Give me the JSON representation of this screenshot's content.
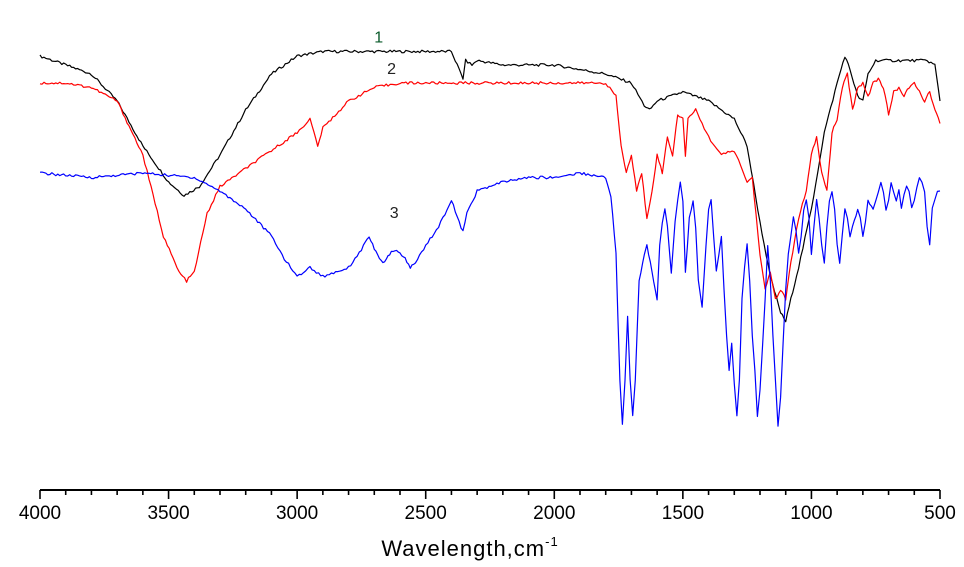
{
  "chart_data": {
    "type": "line",
    "xlabel": "Wavelength,cm",
    "xlabel_superscript": "-1",
    "xlim": [
      4000,
      500
    ],
    "x_reversed": true,
    "x_ticks": [
      4000,
      3500,
      3000,
      2500,
      2000,
      1500,
      1000,
      500
    ],
    "x_tick_labels": [
      "4000",
      "3500",
      "3000",
      "2500",
      "2000",
      "1500",
      "1000",
      "500"
    ],
    "ylim": [
      0,
      100
    ],
    "y_axis_visible": false,
    "grid": false,
    "legend": "none",
    "series": [
      {
        "name": "1",
        "color": "#000000",
        "label_at": [
          2700,
          95
        ],
        "points": [
          [
            4000,
            92
          ],
          [
            3900,
            90
          ],
          [
            3800,
            88
          ],
          [
            3700,
            82
          ],
          [
            3600,
            72
          ],
          [
            3500,
            64
          ],
          [
            3440,
            61
          ],
          [
            3380,
            63
          ],
          [
            3300,
            70
          ],
          [
            3200,
            80
          ],
          [
            3100,
            88
          ],
          [
            3000,
            92
          ],
          [
            2900,
            93
          ],
          [
            2700,
            93
          ],
          [
            2500,
            93
          ],
          [
            2400,
            93
          ],
          [
            2370,
            89
          ],
          [
            2355,
            87
          ],
          [
            2345,
            91
          ],
          [
            2320,
            90
          ],
          [
            2300,
            91
          ],
          [
            2200,
            90
          ],
          [
            2000,
            90
          ],
          [
            1800,
            88
          ],
          [
            1700,
            86
          ],
          [
            1650,
            81
          ],
          [
            1630,
            80
          ],
          [
            1600,
            82
          ],
          [
            1500,
            84
          ],
          [
            1400,
            82
          ],
          [
            1300,
            78
          ],
          [
            1250,
            72
          ],
          [
            1200,
            55
          ],
          [
            1160,
            43
          ],
          [
            1120,
            35
          ],
          [
            1100,
            33
          ],
          [
            1080,
            38
          ],
          [
            1050,
            45
          ],
          [
            1000,
            58
          ],
          [
            950,
            75
          ],
          [
            900,
            86
          ],
          [
            870,
            92
          ],
          [
            850,
            89
          ],
          [
            820,
            83
          ],
          [
            800,
            82
          ],
          [
            780,
            88
          ],
          [
            750,
            91
          ],
          [
            700,
            91
          ],
          [
            600,
            91
          ],
          [
            550,
            91
          ],
          [
            520,
            90
          ],
          [
            500,
            82
          ]
        ]
      },
      {
        "name": "2",
        "color": "#ff0000",
        "label_at": [
          2650,
          88
        ],
        "points": [
          [
            4000,
            86
          ],
          [
            3900,
            86
          ],
          [
            3800,
            85
          ],
          [
            3700,
            82
          ],
          [
            3600,
            70
          ],
          [
            3520,
            52
          ],
          [
            3460,
            44
          ],
          [
            3430,
            42
          ],
          [
            3400,
            44
          ],
          [
            3350,
            57
          ],
          [
            3300,
            63
          ],
          [
            3200,
            67
          ],
          [
            3100,
            71
          ],
          [
            3000,
            75
          ],
          [
            2950,
            78
          ],
          [
            2920,
            72
          ],
          [
            2900,
            76
          ],
          [
            2800,
            82
          ],
          [
            2700,
            85
          ],
          [
            2600,
            86
          ],
          [
            2500,
            86
          ],
          [
            2400,
            86
          ],
          [
            2300,
            86
          ],
          [
            2200,
            86
          ],
          [
            2000,
            86
          ],
          [
            1800,
            86
          ],
          [
            1760,
            83
          ],
          [
            1740,
            72
          ],
          [
            1720,
            66
          ],
          [
            1700,
            70
          ],
          [
            1680,
            62
          ],
          [
            1660,
            66
          ],
          [
            1640,
            56
          ],
          [
            1620,
            62
          ],
          [
            1600,
            70
          ],
          [
            1580,
            66
          ],
          [
            1560,
            74
          ],
          [
            1540,
            70
          ],
          [
            1520,
            79
          ],
          [
            1500,
            78
          ],
          [
            1490,
            70
          ],
          [
            1480,
            78
          ],
          [
            1450,
            80
          ],
          [
            1400,
            74
          ],
          [
            1350,
            70
          ],
          [
            1300,
            71
          ],
          [
            1250,
            64
          ],
          [
            1230,
            65
          ],
          [
            1200,
            48
          ],
          [
            1180,
            40
          ],
          [
            1160,
            44
          ],
          [
            1140,
            38
          ],
          [
            1120,
            40
          ],
          [
            1100,
            38
          ],
          [
            1080,
            46
          ],
          [
            1050,
            56
          ],
          [
            1020,
            62
          ],
          [
            1000,
            70
          ],
          [
            980,
            74
          ],
          [
            960,
            66
          ],
          [
            940,
            62
          ],
          [
            920,
            75
          ],
          [
            900,
            78
          ],
          [
            880,
            85
          ],
          [
            860,
            88
          ],
          [
            840,
            80
          ],
          [
            820,
            85
          ],
          [
            800,
            86
          ],
          [
            780,
            83
          ],
          [
            760,
            86
          ],
          [
            740,
            87
          ],
          [
            720,
            85
          ],
          [
            700,
            79
          ],
          [
            680,
            84
          ],
          [
            660,
            85
          ],
          [
            640,
            83
          ],
          [
            620,
            85
          ],
          [
            600,
            86
          ],
          [
            580,
            84
          ],
          [
            560,
            82
          ],
          [
            540,
            84
          ],
          [
            520,
            80
          ],
          [
            500,
            77
          ]
        ]
      },
      {
        "name": "3",
        "color": "#0000ff",
        "label_at": [
          2640,
          56
        ],
        "points": [
          [
            4000,
            66
          ],
          [
            3800,
            65
          ],
          [
            3600,
            66
          ],
          [
            3400,
            65
          ],
          [
            3300,
            62
          ],
          [
            3200,
            58
          ],
          [
            3100,
            52
          ],
          [
            3050,
            47
          ],
          [
            3000,
            43
          ],
          [
            2950,
            45
          ],
          [
            2900,
            43
          ],
          [
            2850,
            44
          ],
          [
            2800,
            45
          ],
          [
            2750,
            49
          ],
          [
            2720,
            52
          ],
          [
            2700,
            49
          ],
          [
            2680,
            47
          ],
          [
            2660,
            46
          ],
          [
            2640,
            48
          ],
          [
            2620,
            49
          ],
          [
            2600,
            48
          ],
          [
            2580,
            47
          ],
          [
            2560,
            45
          ],
          [
            2540,
            46
          ],
          [
            2500,
            50
          ],
          [
            2450,
            54
          ],
          [
            2400,
            60
          ],
          [
            2370,
            55
          ],
          [
            2355,
            53
          ],
          [
            2340,
            57
          ],
          [
            2300,
            62
          ],
          [
            2200,
            64
          ],
          [
            2100,
            65
          ],
          [
            2000,
            65
          ],
          [
            1900,
            66
          ],
          [
            1800,
            65
          ],
          [
            1780,
            61
          ],
          [
            1760,
            48
          ],
          [
            1745,
            20
          ],
          [
            1735,
            10
          ],
          [
            1725,
            20
          ],
          [
            1715,
            34
          ],
          [
            1705,
            20
          ],
          [
            1695,
            12
          ],
          [
            1685,
            20
          ],
          [
            1670,
            42
          ],
          [
            1650,
            48
          ],
          [
            1640,
            50
          ],
          [
            1620,
            44
          ],
          [
            1600,
            38
          ],
          [
            1590,
            50
          ],
          [
            1580,
            55
          ],
          [
            1570,
            58
          ],
          [
            1560,
            54
          ],
          [
            1545,
            44
          ],
          [
            1530,
            55
          ],
          [
            1520,
            60
          ],
          [
            1510,
            64
          ],
          [
            1500,
            60
          ],
          [
            1490,
            44
          ],
          [
            1475,
            56
          ],
          [
            1460,
            60
          ],
          [
            1450,
            54
          ],
          [
            1440,
            42
          ],
          [
            1425,
            36
          ],
          [
            1410,
            50
          ],
          [
            1400,
            58
          ],
          [
            1390,
            60
          ],
          [
            1380,
            52
          ],
          [
            1370,
            44
          ],
          [
            1360,
            48
          ],
          [
            1350,
            52
          ],
          [
            1340,
            40
          ],
          [
            1330,
            30
          ],
          [
            1320,
            22
          ],
          [
            1310,
            28
          ],
          [
            1300,
            19
          ],
          [
            1290,
            12
          ],
          [
            1280,
            20
          ],
          [
            1270,
            38
          ],
          [
            1260,
            45
          ],
          [
            1250,
            50
          ],
          [
            1240,
            42
          ],
          [
            1230,
            30
          ],
          [
            1220,
            22
          ],
          [
            1210,
            12
          ],
          [
            1200,
            18
          ],
          [
            1190,
            28
          ],
          [
            1180,
            38
          ],
          [
            1170,
            50
          ],
          [
            1160,
            42
          ],
          [
            1150,
            30
          ],
          [
            1140,
            20
          ],
          [
            1130,
            10
          ],
          [
            1120,
            16
          ],
          [
            1110,
            28
          ],
          [
            1100,
            40
          ],
          [
            1090,
            48
          ],
          [
            1080,
            52
          ],
          [
            1070,
            56
          ],
          [
            1060,
            53
          ],
          [
            1050,
            48
          ],
          [
            1040,
            52
          ],
          [
            1030,
            58
          ],
          [
            1020,
            60
          ],
          [
            1010,
            56
          ],
          [
            1000,
            48
          ],
          [
            990,
            54
          ],
          [
            980,
            60
          ],
          [
            970,
            56
          ],
          [
            960,
            50
          ],
          [
            950,
            46
          ],
          [
            940,
            54
          ],
          [
            930,
            60
          ],
          [
            920,
            62
          ],
          [
            910,
            58
          ],
          [
            900,
            50
          ],
          [
            890,
            46
          ],
          [
            880,
            52
          ],
          [
            870,
            58
          ],
          [
            860,
            56
          ],
          [
            850,
            52
          ],
          [
            840,
            54
          ],
          [
            820,
            58
          ],
          [
            810,
            56
          ],
          [
            800,
            52
          ],
          [
            790,
            55
          ],
          [
            780,
            60
          ],
          [
            760,
            58
          ],
          [
            750,
            60
          ],
          [
            740,
            62
          ],
          [
            730,
            64
          ],
          [
            720,
            62
          ],
          [
            710,
            58
          ],
          [
            700,
            60
          ],
          [
            690,
            64
          ],
          [
            680,
            62
          ],
          [
            670,
            60
          ],
          [
            660,
            62
          ],
          [
            650,
            58
          ],
          [
            640,
            61
          ],
          [
            630,
            63
          ],
          [
            620,
            62
          ],
          [
            610,
            58
          ],
          [
            600,
            60
          ],
          [
            590,
            63
          ],
          [
            580,
            65
          ],
          [
            570,
            64
          ],
          [
            560,
            62
          ],
          [
            550,
            54
          ],
          [
            540,
            50
          ],
          [
            530,
            58
          ],
          [
            520,
            60
          ],
          [
            510,
            62
          ],
          [
            500,
            62
          ]
        ]
      }
    ]
  }
}
